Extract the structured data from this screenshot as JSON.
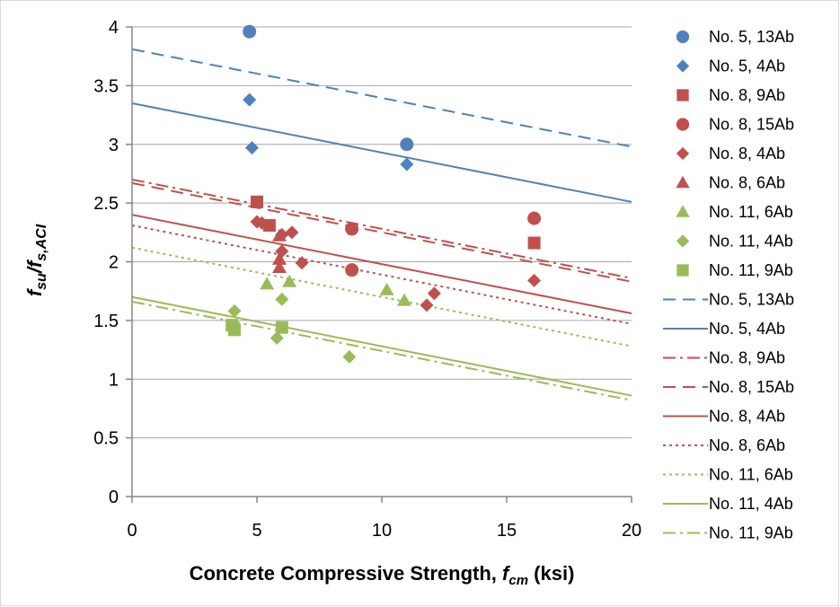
{
  "chart_data": {
    "type": "scatter",
    "title": "",
    "xlabel": {
      "prefix": "Concrete Compressive Strength, ",
      "var": "f",
      "sub": "cm",
      "suffix": " (ksi)"
    },
    "ylabel": {
      "num_var": "f",
      "num_sub": "su",
      "slash": "/",
      "den_var": "f",
      "den_sub": "s,ACI"
    },
    "xlim": [
      0,
      20
    ],
    "ylim": [
      0,
      4
    ],
    "x_ticks": [
      0,
      5,
      10,
      15,
      20
    ],
    "y_ticks": [
      0,
      0.5,
      1,
      1.5,
      2,
      2.5,
      3,
      3.5,
      4
    ],
    "x_tick_labels": [
      "0",
      "5",
      "10",
      "15",
      "20"
    ],
    "y_tick_labels": [
      "0",
      "0.5",
      "1",
      "1.5",
      "2",
      "2.5",
      "3",
      "3.5",
      "4"
    ],
    "grid": "horizontal",
    "legend_position": "right",
    "colors": {
      "blue": "#4f81bd",
      "red": "#c0504d",
      "green": "#9bbb59",
      "grid": "#a6a6a6",
      "border": "#d9d9d9"
    },
    "series": [
      {
        "name": "No. 5, 13Ab",
        "kind": "marker",
        "marker": "circle",
        "color": "#4f81bd",
        "points": [
          [
            4.7,
            3.96
          ],
          [
            11.0,
            3.0
          ]
        ]
      },
      {
        "name": "No. 5, 4Ab",
        "kind": "marker",
        "marker": "diamond",
        "color": "#4f81bd",
        "points": [
          [
            4.7,
            3.38
          ],
          [
            4.8,
            2.97
          ],
          [
            11.0,
            2.83
          ]
        ]
      },
      {
        "name": "No. 8, 9Ab",
        "kind": "marker",
        "marker": "square",
        "color": "#c0504d",
        "points": [
          [
            5.0,
            2.51
          ],
          [
            5.5,
            2.31
          ],
          [
            16.1,
            2.16
          ]
        ]
      },
      {
        "name": "No. 8, 15Ab",
        "kind": "marker",
        "marker": "circle",
        "color": "#c0504d",
        "points": [
          [
            8.8,
            2.28
          ],
          [
            8.8,
            1.93
          ],
          [
            16.1,
            2.37
          ]
        ]
      },
      {
        "name": "No. 8, 4Ab",
        "kind": "marker",
        "marker": "diamond",
        "color": "#c0504d",
        "points": [
          [
            5.0,
            2.34
          ],
          [
            5.2,
            2.33
          ],
          [
            6.0,
            2.23
          ],
          [
            6.0,
            2.09
          ],
          [
            6.4,
            2.25
          ],
          [
            6.8,
            1.99
          ],
          [
            11.8,
            1.63
          ],
          [
            12.1,
            1.73
          ],
          [
            16.1,
            1.84
          ]
        ]
      },
      {
        "name": "No. 8, 6Ab",
        "kind": "marker",
        "marker": "triangle",
        "color": "#c0504d",
        "points": [
          [
            5.9,
            2.22
          ],
          [
            5.9,
            2.02
          ],
          [
            5.9,
            1.95
          ]
        ]
      },
      {
        "name": "No. 11, 6Ab",
        "kind": "marker",
        "marker": "triangle",
        "color": "#9bbb59",
        "points": [
          [
            5.4,
            1.81
          ],
          [
            6.3,
            1.83
          ],
          [
            10.2,
            1.76
          ],
          [
            10.9,
            1.67
          ]
        ]
      },
      {
        "name": "No. 11, 4Ab",
        "kind": "marker",
        "marker": "diamond",
        "color": "#9bbb59",
        "points": [
          [
            4.1,
            1.58
          ],
          [
            5.8,
            1.35
          ],
          [
            6.0,
            1.68
          ],
          [
            8.7,
            1.19
          ]
        ]
      },
      {
        "name": "No. 11, 9Ab",
        "kind": "marker",
        "marker": "square",
        "color": "#9bbb59",
        "points": [
          [
            4.0,
            1.46
          ],
          [
            4.1,
            1.42
          ],
          [
            6.0,
            1.44
          ]
        ]
      },
      {
        "name": "No. 5, 13Ab",
        "kind": "line",
        "style": "dash",
        "color": "#4f81bd",
        "points": [
          [
            0,
            3.81
          ],
          [
            20,
            2.98
          ]
        ]
      },
      {
        "name": "No. 5, 4Ab",
        "kind": "line",
        "style": "solid",
        "color": "#4f81bd",
        "points": [
          [
            0,
            3.35
          ],
          [
            20,
            2.51
          ]
        ]
      },
      {
        "name": "No. 8, 9Ab",
        "kind": "line",
        "style": "dashdot",
        "color": "#c0504d",
        "points": [
          [
            0,
            2.7
          ],
          [
            20,
            1.86
          ]
        ]
      },
      {
        "name": "No. 8, 15Ab",
        "kind": "line",
        "style": "dash",
        "color": "#c0504d",
        "points": [
          [
            0,
            2.67
          ],
          [
            20,
            1.83
          ]
        ]
      },
      {
        "name": "No. 8, 4Ab",
        "kind": "line",
        "style": "solid",
        "color": "#c0504d",
        "points": [
          [
            0,
            2.4
          ],
          [
            20,
            1.56
          ]
        ]
      },
      {
        "name": "No. 8, 6Ab",
        "kind": "line",
        "style": "dot",
        "color": "#c0504d",
        "points": [
          [
            0,
            2.31
          ],
          [
            20,
            1.47
          ]
        ]
      },
      {
        "name": "No. 11, 6Ab",
        "kind": "line",
        "style": "dot",
        "color": "#9bbb59",
        "points": [
          [
            0,
            2.12
          ],
          [
            20,
            1.28
          ]
        ]
      },
      {
        "name": "No. 11, 4Ab",
        "kind": "line",
        "style": "solid",
        "color": "#9bbb59",
        "points": [
          [
            0,
            1.7
          ],
          [
            20,
            0.86
          ]
        ]
      },
      {
        "name": "No. 11, 9Ab",
        "kind": "line",
        "style": "dashdot",
        "color": "#9bbb59",
        "points": [
          [
            0,
            1.66
          ],
          [
            20,
            0.82
          ]
        ]
      }
    ]
  }
}
